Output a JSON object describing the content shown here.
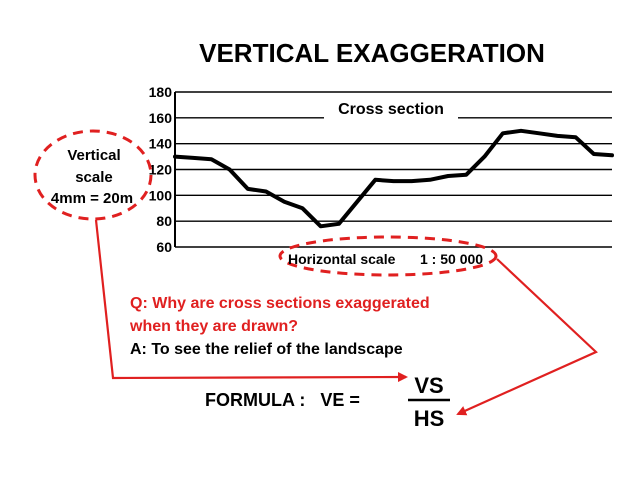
{
  "title": "VERTICAL EXAGGERATION",
  "chart": {
    "label": "Cross section",
    "y_ticks": [
      "180",
      "160",
      "140",
      "120",
      "100",
      "80",
      "60"
    ]
  },
  "vertical_scale": {
    "line1": "Vertical",
    "line2": "scale",
    "line3": "4mm = 20m"
  },
  "horizontal_scale": {
    "label": "Horizontal scale",
    "ratio": "1 : 50 000"
  },
  "question": {
    "line1": "Q: Why are cross sections exaggerated",
    "line2": "when they are drawn?"
  },
  "answer": "A: To see the relief of the landscape",
  "formula": {
    "lhs": "FORMULA :   VE =",
    "numerator": "VS",
    "denominator": "HS"
  },
  "colors": {
    "accent": "#e02020",
    "text": "#000000",
    "grid": "#000000"
  },
  "profile_elevations": [
    130,
    129,
    128,
    120,
    105,
    103,
    95,
    90,
    76,
    78,
    95,
    112,
    111,
    111,
    112,
    115,
    116,
    130,
    148,
    150,
    148,
    146,
    145,
    132,
    131
  ]
}
